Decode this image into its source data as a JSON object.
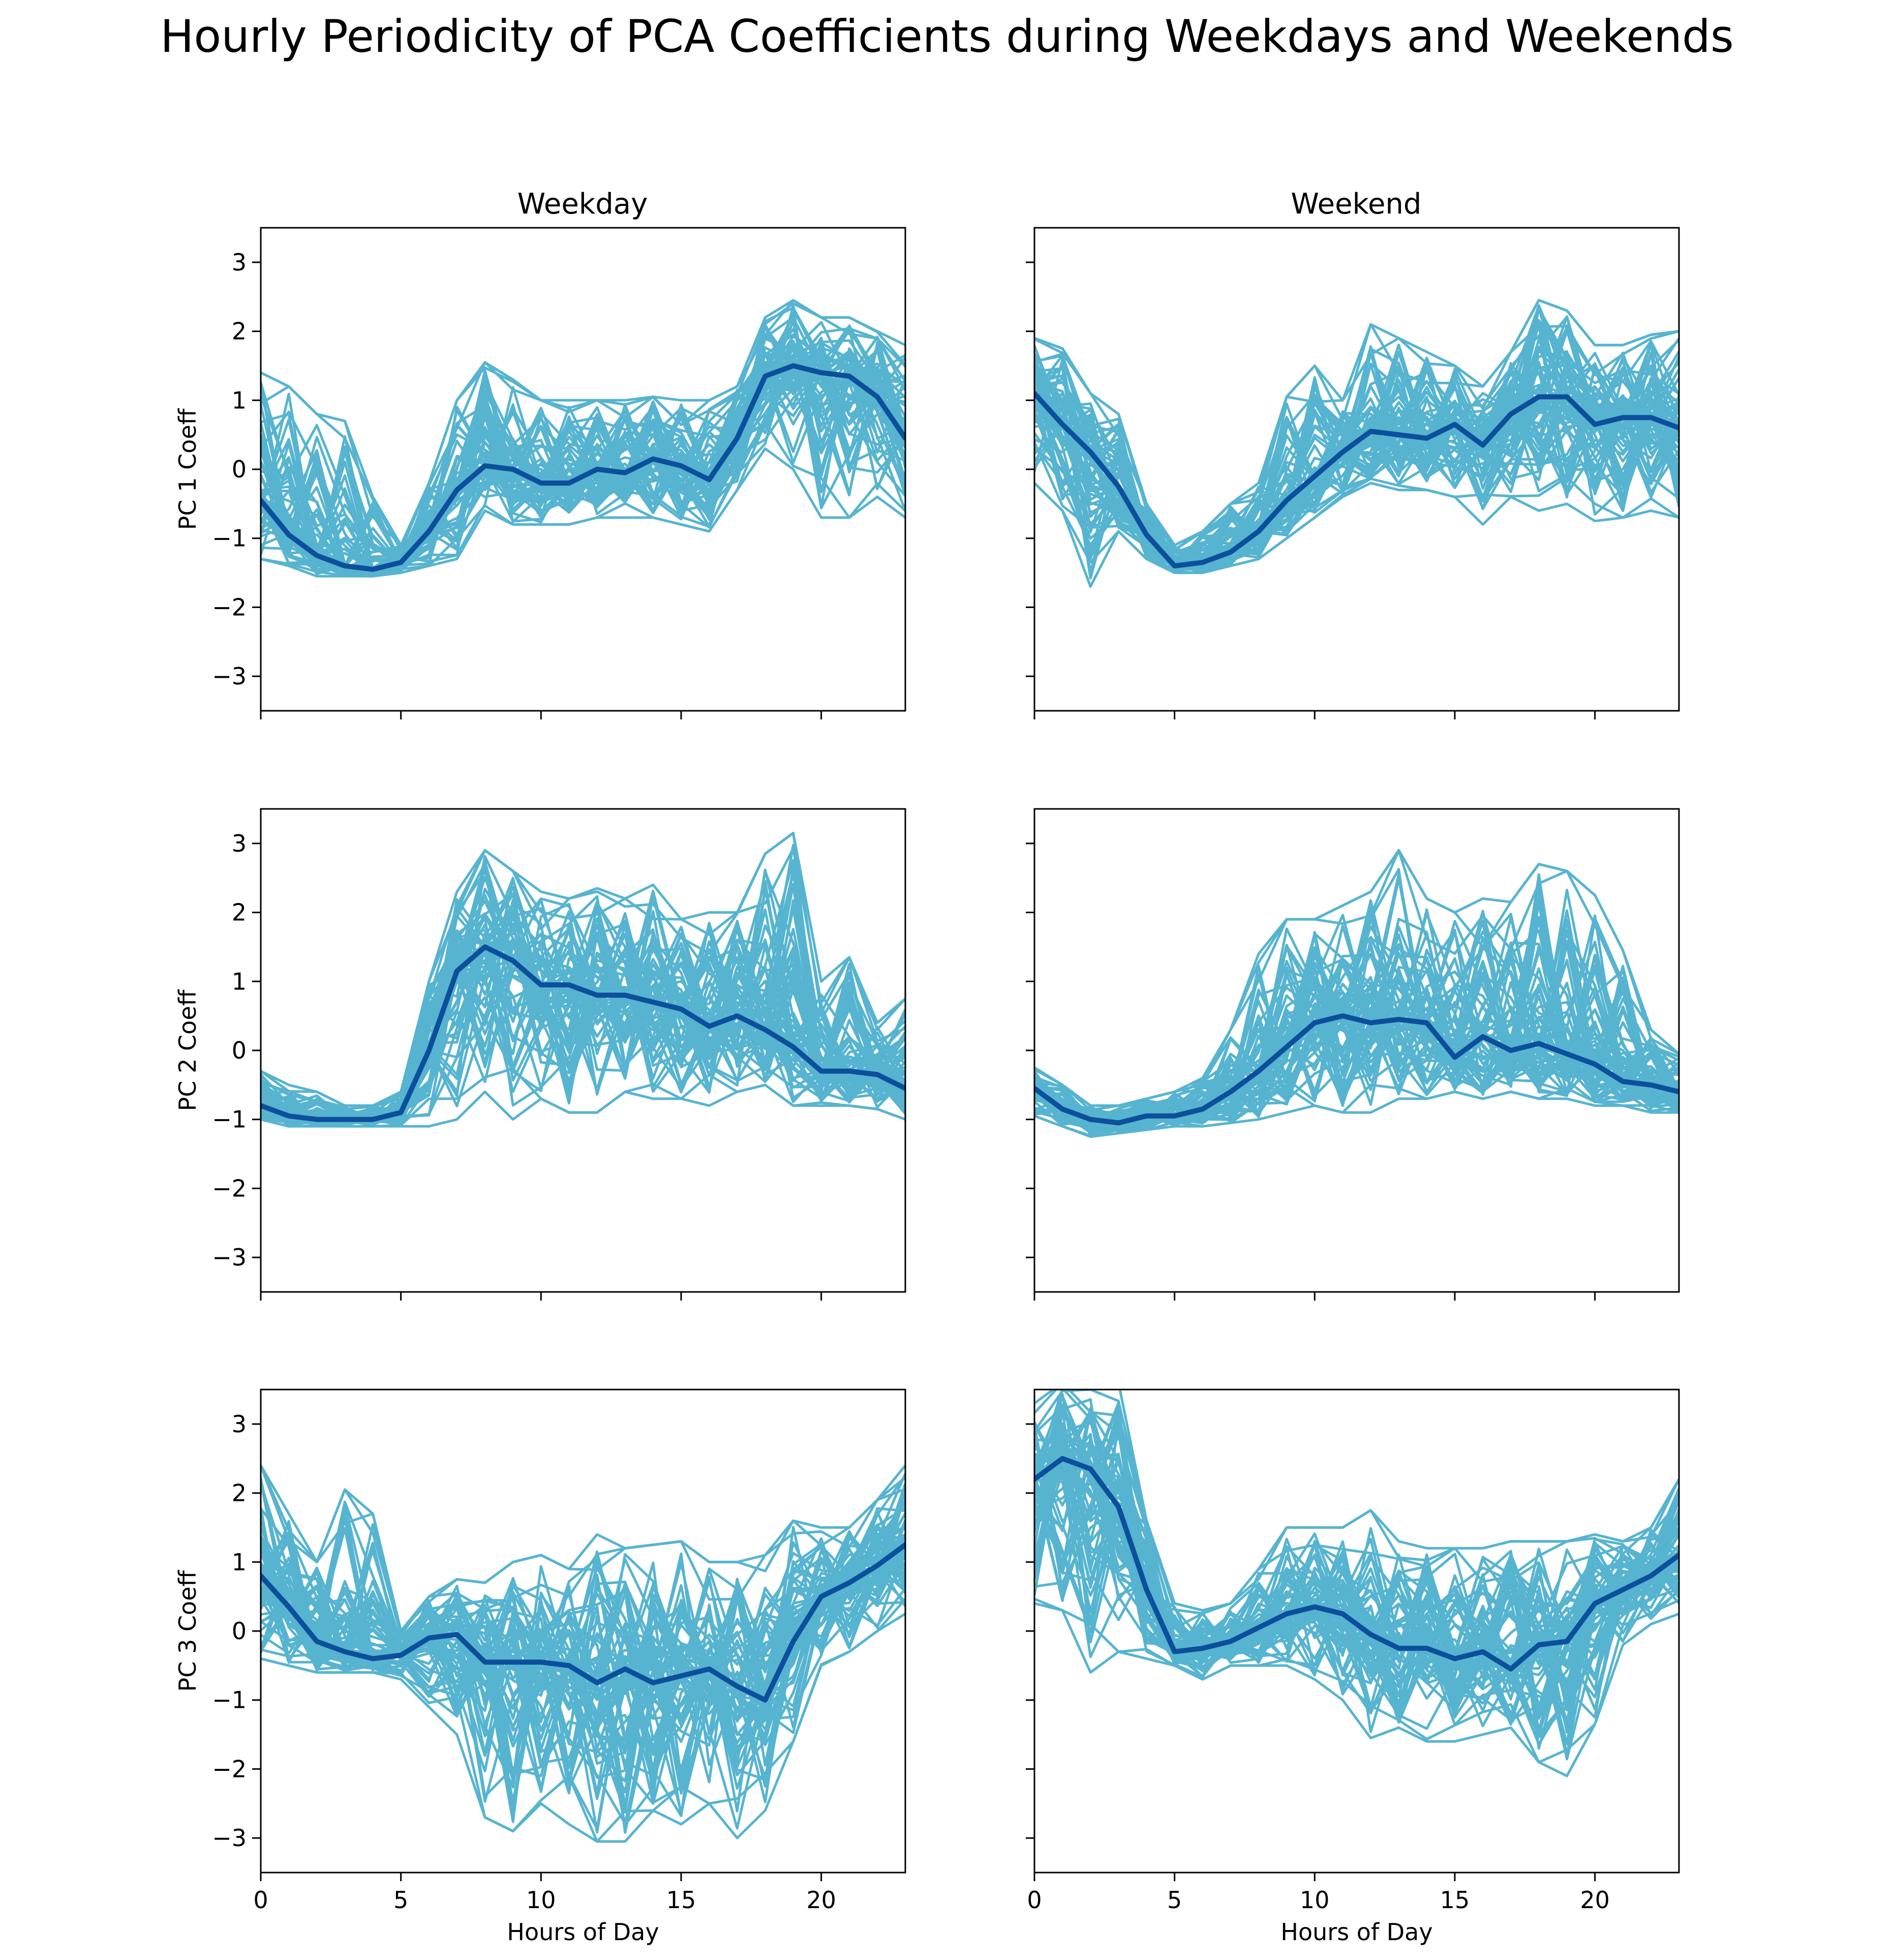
{
  "title": "Hourly Periodicity of PCA Coefficients during Weekdays and Weekends",
  "column_titles": [
    "Weekday",
    "Weekend"
  ],
  "row_ylabels": [
    "PC 1 Coeff",
    "PC 2 Coeff",
    "PC 3 Coeff"
  ],
  "xlabel": "Hours of Day",
  "colors": {
    "individual": "#56b4d0",
    "mean": "#0c4f9c"
  },
  "chart_data": [
    {
      "type": "line",
      "row": 0,
      "col": 0,
      "title": "Weekday",
      "xlabel": "",
      "ylabel": "PC 1 Coeff",
      "xlim": [
        0,
        23
      ],
      "ylim": [
        -3.5,
        3.5
      ],
      "xticks": [
        0,
        5,
        10,
        15,
        20
      ],
      "yticks": [
        -3,
        -2,
        -1,
        0,
        1,
        2,
        3
      ],
      "show_xticklabels": false,
      "show_yticklabels": true,
      "x": [
        0,
        1,
        2,
        3,
        4,
        5,
        6,
        7,
        8,
        9,
        10,
        11,
        12,
        13,
        14,
        15,
        16,
        17,
        18,
        19,
        20,
        21,
        22,
        23
      ],
      "mean": [
        -0.45,
        -0.95,
        -1.25,
        -1.4,
        -1.45,
        -1.35,
        -0.9,
        -0.3,
        0.05,
        0.0,
        -0.2,
        -0.2,
        0.0,
        -0.05,
        0.15,
        0.05,
        -0.15,
        0.45,
        1.35,
        1.5,
        1.4,
        1.35,
        1.05,
        0.45
      ],
      "band_low": [
        -1.3,
        -1.4,
        -1.55,
        -1.55,
        -1.55,
        -1.5,
        -1.4,
        -1.3,
        -0.6,
        -0.8,
        -0.8,
        -0.8,
        -0.7,
        -0.7,
        -0.7,
        -0.8,
        -0.9,
        -0.3,
        0.3,
        0.0,
        -0.7,
        -0.7,
        -0.4,
        -0.7
      ],
      "band_high": [
        1.4,
        1.2,
        0.8,
        0.7,
        -0.4,
        -1.1,
        -0.2,
        1.0,
        1.55,
        1.3,
        1.0,
        1.0,
        1.0,
        1.0,
        1.05,
        1.0,
        1.0,
        1.2,
        2.2,
        2.45,
        2.2,
        2.2,
        2.0,
        1.8
      ]
    },
    {
      "type": "line",
      "row": 0,
      "col": 1,
      "title": "Weekend",
      "xlabel": "",
      "ylabel": "",
      "xlim": [
        0,
        23
      ],
      "ylim": [
        -3.5,
        3.5
      ],
      "xticks": [
        0,
        5,
        10,
        15,
        20
      ],
      "yticks": [
        -3,
        -2,
        -1,
        0,
        1,
        2,
        3
      ],
      "show_xticklabels": false,
      "show_yticklabels": false,
      "x": [
        0,
        1,
        2,
        3,
        4,
        5,
        6,
        7,
        8,
        9,
        10,
        11,
        12,
        13,
        14,
        15,
        16,
        17,
        18,
        19,
        20,
        21,
        22,
        23
      ],
      "mean": [
        1.1,
        0.65,
        0.25,
        -0.25,
        -0.95,
        -1.4,
        -1.35,
        -1.2,
        -0.9,
        -0.45,
        -0.1,
        0.25,
        0.55,
        0.5,
        0.45,
        0.65,
        0.35,
        0.8,
        1.05,
        1.05,
        0.65,
        0.75,
        0.75,
        0.6
      ],
      "band_low": [
        -0.2,
        -0.6,
        -1.7,
        -0.9,
        -1.3,
        -1.5,
        -1.5,
        -1.4,
        -1.3,
        -1.0,
        -0.7,
        -0.4,
        -0.2,
        -0.3,
        -0.3,
        -0.4,
        -0.8,
        -0.4,
        -0.6,
        -0.5,
        -0.75,
        -0.7,
        -0.6,
        -0.7
      ],
      "band_high": [
        1.9,
        1.75,
        1.1,
        0.8,
        -0.5,
        -1.1,
        -0.9,
        -0.5,
        -0.2,
        1.05,
        1.5,
        1.0,
        2.1,
        1.9,
        1.7,
        1.5,
        1.2,
        1.7,
        2.45,
        2.3,
        1.8,
        1.8,
        1.95,
        2.0
      ]
    },
    {
      "type": "line",
      "row": 1,
      "col": 0,
      "title": "",
      "xlabel": "",
      "ylabel": "PC 2 Coeff",
      "xlim": [
        0,
        23
      ],
      "ylim": [
        -3.5,
        3.5
      ],
      "xticks": [
        0,
        5,
        10,
        15,
        20
      ],
      "yticks": [
        -3,
        -2,
        -1,
        0,
        1,
        2,
        3
      ],
      "show_xticklabels": false,
      "show_yticklabels": true,
      "x": [
        0,
        1,
        2,
        3,
        4,
        5,
        6,
        7,
        8,
        9,
        10,
        11,
        12,
        13,
        14,
        15,
        16,
        17,
        18,
        19,
        20,
        21,
        22,
        23
      ],
      "mean": [
        -0.8,
        -0.95,
        -1.0,
        -1.0,
        -1.0,
        -0.9,
        0.0,
        1.15,
        1.5,
        1.3,
        0.95,
        0.95,
        0.8,
        0.8,
        0.7,
        0.6,
        0.35,
        0.5,
        0.3,
        0.05,
        -0.3,
        -0.3,
        -0.35,
        -0.55
      ],
      "band_low": [
        -1.0,
        -1.1,
        -1.1,
        -1.1,
        -1.1,
        -1.1,
        -1.1,
        -1.0,
        -0.6,
        -1.0,
        -0.7,
        -0.9,
        -0.9,
        -0.6,
        -0.7,
        -0.7,
        -0.8,
        -0.6,
        -0.5,
        -0.8,
        -0.8,
        -0.8,
        -0.85,
        -1.0
      ],
      "band_high": [
        -0.3,
        -0.5,
        -0.6,
        -0.8,
        -0.8,
        -0.6,
        1.0,
        2.3,
        2.9,
        2.6,
        2.3,
        2.2,
        2.35,
        2.2,
        2.4,
        1.9,
        2.0,
        2.0,
        2.85,
        3.15,
        1.0,
        1.35,
        0.4,
        0.75
      ]
    },
    {
      "type": "line",
      "row": 1,
      "col": 1,
      "title": "",
      "xlabel": "",
      "ylabel": "",
      "xlim": [
        0,
        23
      ],
      "ylim": [
        -3.5,
        3.5
      ],
      "xticks": [
        0,
        5,
        10,
        15,
        20
      ],
      "yticks": [
        -3,
        -2,
        -1,
        0,
        1,
        2,
        3
      ],
      "show_xticklabels": false,
      "show_yticklabels": false,
      "x": [
        0,
        1,
        2,
        3,
        4,
        5,
        6,
        7,
        8,
        9,
        10,
        11,
        12,
        13,
        14,
        15,
        16,
        17,
        18,
        19,
        20,
        21,
        22,
        23
      ],
      "mean": [
        -0.55,
        -0.85,
        -1.0,
        -1.05,
        -0.95,
        -0.95,
        -0.85,
        -0.6,
        -0.3,
        0.05,
        0.4,
        0.5,
        0.4,
        0.45,
        0.4,
        -0.1,
        0.2,
        0.0,
        0.1,
        -0.05,
        -0.2,
        -0.45,
        -0.5,
        -0.6
      ],
      "band_low": [
        -0.95,
        -1.1,
        -1.25,
        -1.2,
        -1.15,
        -1.1,
        -1.1,
        -1.05,
        -1.0,
        -0.9,
        -0.8,
        -0.9,
        -0.9,
        -0.7,
        -0.7,
        -0.6,
        -0.7,
        -0.6,
        -0.7,
        -0.7,
        -0.8,
        -0.8,
        -0.9,
        -0.9
      ],
      "band_high": [
        -0.25,
        -0.5,
        -0.8,
        -0.8,
        -0.7,
        -0.6,
        -0.4,
        0.3,
        1.4,
        1.9,
        1.9,
        2.1,
        2.3,
        2.9,
        2.2,
        2.0,
        2.2,
        2.15,
        2.7,
        2.6,
        2.25,
        1.45,
        0.3,
        -0.05
      ]
    },
    {
      "type": "line",
      "row": 2,
      "col": 0,
      "title": "",
      "xlabel": "Hours of Day",
      "ylabel": "PC 3 Coeff",
      "xlim": [
        0,
        23
      ],
      "ylim": [
        -3.5,
        3.5
      ],
      "xticks": [
        0,
        5,
        10,
        15,
        20
      ],
      "yticks": [
        -3,
        -2,
        -1,
        0,
        1,
        2,
        3
      ],
      "show_xticklabels": true,
      "show_yticklabels": true,
      "x": [
        0,
        1,
        2,
        3,
        4,
        5,
        6,
        7,
        8,
        9,
        10,
        11,
        12,
        13,
        14,
        15,
        16,
        17,
        18,
        19,
        20,
        21,
        22,
        23
      ],
      "mean": [
        0.8,
        0.35,
        -0.15,
        -0.3,
        -0.4,
        -0.35,
        -0.1,
        -0.05,
        -0.45,
        -0.45,
        -0.45,
        -0.5,
        -0.75,
        -0.55,
        -0.75,
        -0.65,
        -0.55,
        -0.8,
        -1.0,
        -0.15,
        0.5,
        0.7,
        0.95,
        1.25
      ],
      "band_low": [
        -0.4,
        -0.5,
        -0.6,
        -0.6,
        -0.6,
        -0.7,
        -1.1,
        -1.5,
        -2.7,
        -2.9,
        -2.5,
        -2.8,
        -3.05,
        -3.05,
        -2.6,
        -2.8,
        -2.5,
        -3.0,
        -2.6,
        -1.6,
        -0.5,
        -0.3,
        0.0,
        0.25
      ],
      "band_high": [
        2.4,
        1.7,
        1.0,
        2.05,
        1.7,
        0.0,
        0.5,
        0.75,
        0.7,
        1.0,
        1.1,
        0.9,
        1.4,
        1.2,
        1.25,
        1.3,
        1.0,
        1.0,
        1.1,
        1.6,
        1.5,
        1.5,
        1.9,
        2.4
      ]
    },
    {
      "type": "line",
      "row": 2,
      "col": 1,
      "title": "",
      "xlabel": "Hours of Day",
      "ylabel": "",
      "xlim": [
        0,
        23
      ],
      "ylim": [
        -3.5,
        3.5
      ],
      "xticks": [
        0,
        5,
        10,
        15,
        20
      ],
      "yticks": [
        -3,
        -2,
        -1,
        0,
        1,
        2,
        3
      ],
      "show_xticklabels": true,
      "show_yticklabels": false,
      "x": [
        0,
        1,
        2,
        3,
        4,
        5,
        6,
        7,
        8,
        9,
        10,
        11,
        12,
        13,
        14,
        15,
        16,
        17,
        18,
        19,
        20,
        21,
        22,
        23
      ],
      "mean": [
        2.2,
        2.5,
        2.35,
        1.8,
        0.6,
        -0.3,
        -0.25,
        -0.15,
        0.05,
        0.25,
        0.35,
        0.25,
        -0.05,
        -0.25,
        -0.25,
        -0.4,
        -0.3,
        -0.55,
        -0.2,
        -0.15,
        0.4,
        0.6,
        0.8,
        1.1
      ],
      "band_low": [
        0.4,
        0.3,
        -0.6,
        -0.3,
        -0.4,
        -0.5,
        -0.7,
        -0.5,
        -0.5,
        -0.5,
        -0.7,
        -1.0,
        -1.55,
        -1.4,
        -1.6,
        -1.6,
        -1.5,
        -1.4,
        -1.9,
        -2.1,
        -1.35,
        -0.2,
        0.1,
        0.25
      ],
      "band_high": [
        3.3,
        3.6,
        3.5,
        3.6,
        1.6,
        0.4,
        0.3,
        0.4,
        0.9,
        1.5,
        1.5,
        1.5,
        1.75,
        1.3,
        1.2,
        1.2,
        1.2,
        1.3,
        1.3,
        1.3,
        1.4,
        1.3,
        1.5,
        2.2
      ]
    }
  ]
}
